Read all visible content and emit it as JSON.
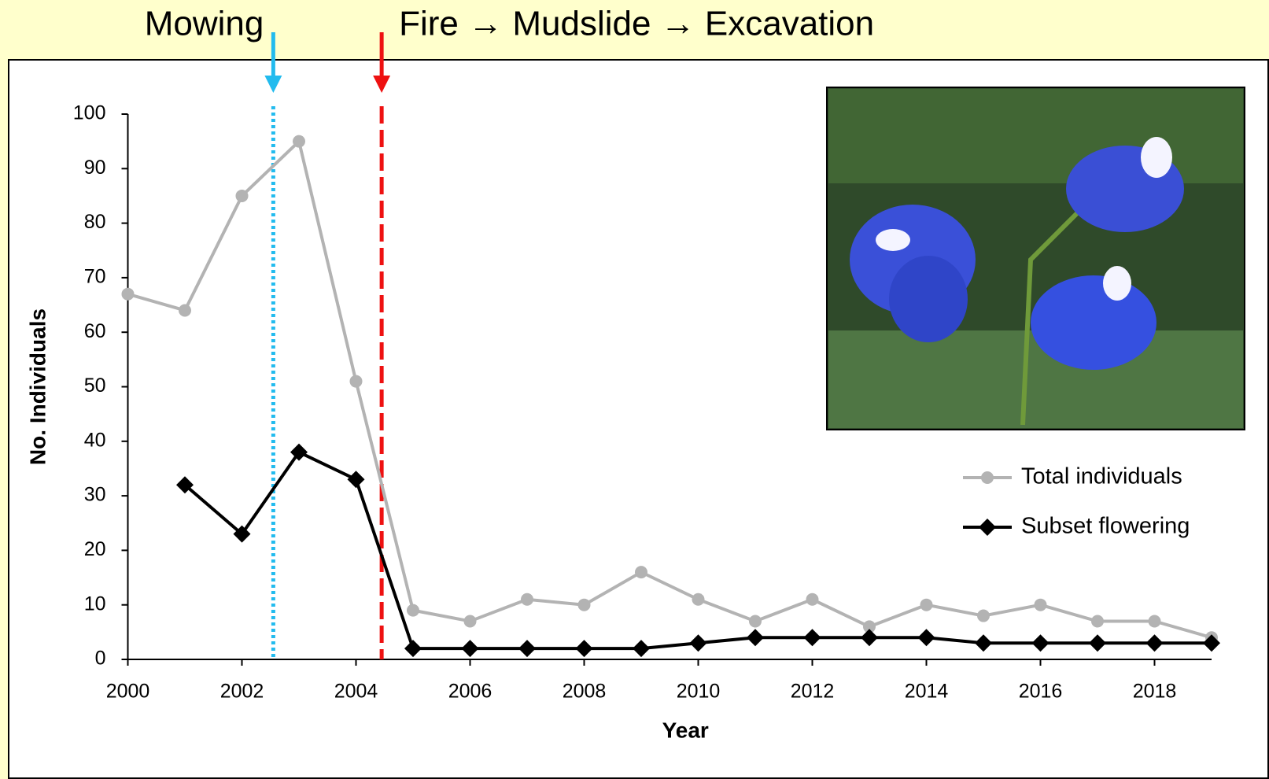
{
  "chart_data": {
    "type": "line",
    "x": [
      2000,
      2001,
      2002,
      2003,
      2004,
      2005,
      2006,
      2007,
      2008,
      2009,
      2010,
      2011,
      2012,
      2013,
      2014,
      2015,
      2016,
      2017,
      2018,
      2019
    ],
    "series": [
      {
        "name": "Total individuals",
        "color": "#b3b3b3",
        "marker": "circle",
        "values": [
          67,
          64,
          85,
          95,
          51,
          9,
          7,
          11,
          10,
          16,
          11,
          7,
          11,
          6,
          10,
          8,
          10,
          7,
          7,
          4
        ]
      },
      {
        "name": "Subset flowering",
        "color": "#000000",
        "marker": "diamond",
        "values": [
          null,
          32,
          23,
          38,
          33,
          2,
          2,
          2,
          2,
          2,
          3,
          4,
          4,
          4,
          4,
          3,
          3,
          3,
          3,
          3
        ]
      }
    ],
    "xlabel": "Year",
    "ylabel": "No. Individuals",
    "xlim": [
      2000,
      2019
    ],
    "xticks": [
      2000,
      2002,
      2004,
      2006,
      2008,
      2010,
      2012,
      2014,
      2016,
      2018
    ],
    "ylim": [
      0,
      100
    ],
    "yticks": [
      0,
      10,
      20,
      30,
      40,
      50,
      60,
      70,
      80,
      90,
      100
    ],
    "legend": "right",
    "events": [
      {
        "label": "Mowing",
        "x": 2002.55,
        "color": "#1aa0e0",
        "style": "dotted",
        "line_color": "#22bbee"
      },
      {
        "label": "Fire → Mudslide → Excavation",
        "x": 2004.45,
        "color": "#c00000",
        "style": "dashed",
        "line_color": "#ee1111"
      }
    ]
  }
}
